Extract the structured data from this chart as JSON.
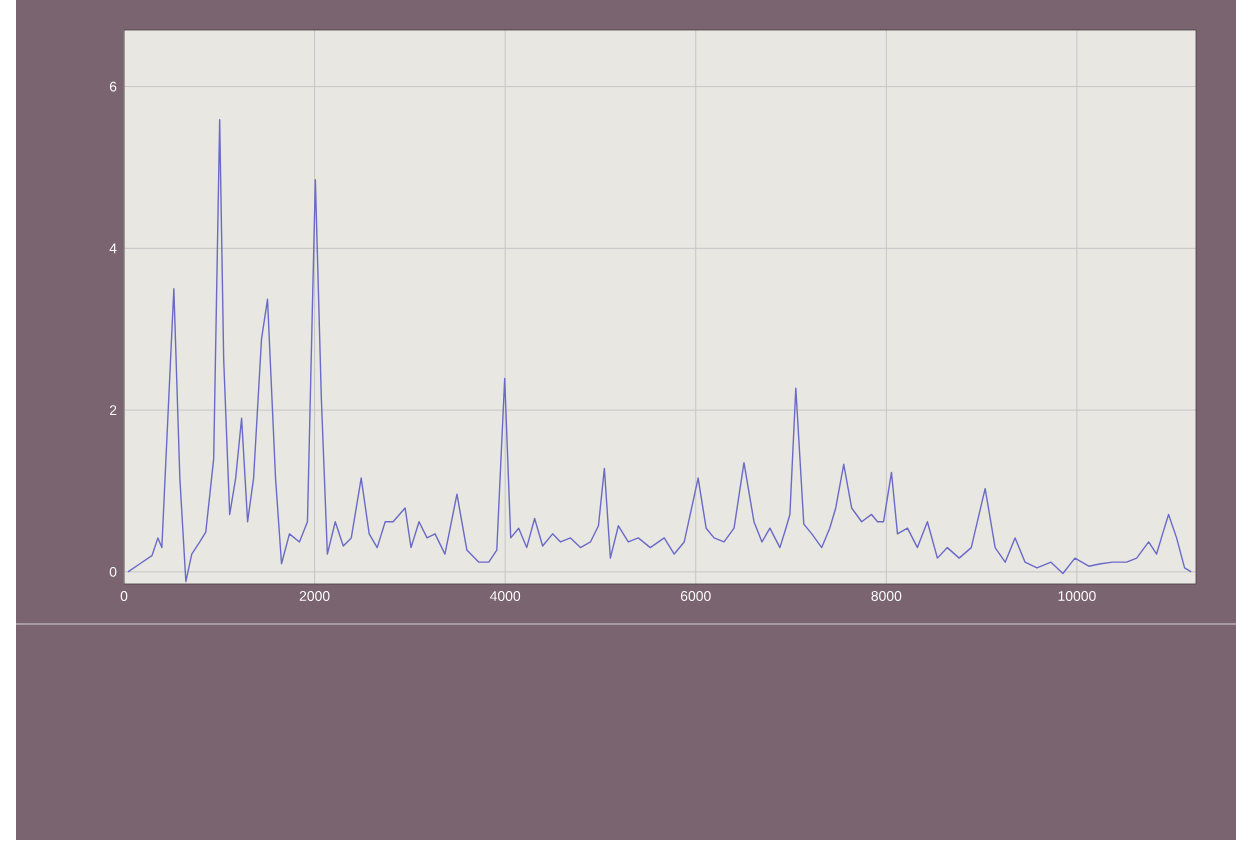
{
  "chart_data": {
    "type": "line",
    "x": [
      42,
      167,
      293,
      356,
      397,
      460,
      523,
      586,
      649,
      711,
      795,
      858,
      941,
      1004,
      1046,
      1109,
      1172,
      1234,
      1297,
      1360,
      1443,
      1506,
      1590,
      1653,
      1736,
      1841,
      1925,
      2008,
      2071,
      2134,
      2217,
      2301,
      2385,
      2489,
      2573,
      2657,
      2741,
      2824,
      2950,
      3012,
      3096,
      3180,
      3264,
      3368,
      3494,
      3598,
      3724,
      3828,
      3912,
      3995,
      4058,
      4142,
      4226,
      4309,
      4393,
      4498,
      4581,
      4686,
      4790,
      4895,
      4979,
      5041,
      5104,
      5188,
      5292,
      5397,
      5523,
      5669,
      5774,
      5879,
      6025,
      6109,
      6192,
      6297,
      6402,
      6506,
      6611,
      6695,
      6778,
      6883,
      6946,
      6988,
      7050,
      7134,
      7218,
      7322,
      7406,
      7469,
      7553,
      7636,
      7741,
      7845,
      7908,
      7971,
      8054,
      8117,
      8222,
      8326,
      8431,
      8536,
      8640,
      8765,
      8891,
      9037,
      9142,
      9247,
      9351,
      9456,
      9581,
      9728,
      9853,
      9979,
      10125,
      10251,
      10376,
      10522,
      10627,
      10753,
      10836,
      10899,
      10962,
      11046,
      11130,
      11200
    ],
    "values": [
      0,
      0.1,
      0.2,
      0.42,
      0.3,
      1.9,
      3.5,
      1.16,
      -0.12,
      0.22,
      0.37,
      0.49,
      1.4,
      5.59,
      2.63,
      0.71,
      1.16,
      1.9,
      0.62,
      1.16,
      2.88,
      3.37,
      1.16,
      0.1,
      0.47,
      0.37,
      0.62,
      4.85,
      2.14,
      0.22,
      0.62,
      0.32,
      0.42,
      1.16,
      0.47,
      0.3,
      0.62,
      0.62,
      0.79,
      0.3,
      0.62,
      0.42,
      0.47,
      0.22,
      0.96,
      0.27,
      0.12,
      0.12,
      0.27,
      2.39,
      0.42,
      0.54,
      0.3,
      0.66,
      0.32,
      0.47,
      0.37,
      0.42,
      0.3,
      0.37,
      0.57,
      1.28,
      0.17,
      0.57,
      0.37,
      0.42,
      0.3,
      0.42,
      0.22,
      0.37,
      1.16,
      0.54,
      0.42,
      0.37,
      0.54,
      1.35,
      0.62,
      0.37,
      0.54,
      0.3,
      0.54,
      0.71,
      2.27,
      0.59,
      0.47,
      0.3,
      0.54,
      0.79,
      1.33,
      0.79,
      0.62,
      0.71,
      0.62,
      0.62,
      1.23,
      0.47,
      0.54,
      0.3,
      0.62,
      0.17,
      0.3,
      0.17,
      0.3,
      1.03,
      0.3,
      0.12,
      0.42,
      0.12,
      0.05,
      0.12,
      -0.02,
      0.17,
      0.07,
      0.1,
      0.12,
      0.12,
      0.17,
      0.37,
      0.22,
      0.47,
      0.71,
      0.42,
      0.05,
      0
    ],
    "color": "#6a6ac8",
    "xlim": [
      0,
      11250
    ],
    "ylim": [
      -0.15,
      6.7
    ],
    "xticks": [
      0,
      2000,
      4000,
      6000,
      8000,
      10000
    ],
    "yticks": [
      0,
      2,
      4,
      6
    ],
    "grid": true
  }
}
